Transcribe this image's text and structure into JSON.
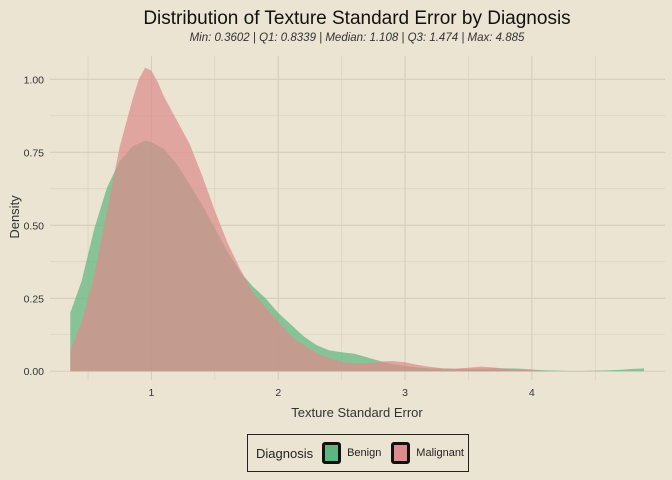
{
  "chart_data": {
    "type": "area",
    "title": "Distribution of Texture Standard Error by Diagnosis",
    "subtitle": "Min: 0.3602 | Q1: 0.8339 | Median: 1.108 | Q3: 1.474 | Max: 4.885",
    "xlabel": "Texture Standard Error",
    "ylabel": "Density",
    "xlim": [
      0.2,
      5.05
    ],
    "ylim": [
      -0.03,
      1.08
    ],
    "x_ticks": [
      1,
      2,
      3,
      4
    ],
    "y_ticks": [
      0.0,
      0.25,
      0.5,
      0.75,
      1.0
    ],
    "y_tick_labels": [
      "0.00",
      "0.25",
      "0.50",
      "0.75",
      "1.00"
    ],
    "grid": true,
    "legend_placement": "bottom",
    "legend_title": "Diagnosis",
    "series": [
      {
        "name": "Benign",
        "color": "#5fb580",
        "x": [
          0.36,
          0.45,
          0.55,
          0.65,
          0.75,
          0.85,
          0.95,
          1.0,
          1.1,
          1.2,
          1.3,
          1.4,
          1.5,
          1.6,
          1.7,
          1.8,
          1.9,
          2.0,
          2.1,
          2.2,
          2.3,
          2.4,
          2.5,
          2.6,
          2.7,
          2.8,
          2.9,
          3.0,
          3.1,
          3.2,
          3.3,
          3.4,
          3.5,
          3.6,
          3.7,
          3.8,
          3.9,
          4.0,
          4.1,
          4.2,
          4.3,
          4.4,
          4.5,
          4.6,
          4.7,
          4.8,
          4.885
        ],
        "values": [
          0.2,
          0.31,
          0.49,
          0.63,
          0.72,
          0.77,
          0.79,
          0.785,
          0.76,
          0.71,
          0.64,
          0.57,
          0.49,
          0.41,
          0.34,
          0.29,
          0.25,
          0.2,
          0.16,
          0.12,
          0.09,
          0.072,
          0.065,
          0.06,
          0.048,
          0.035,
          0.025,
          0.018,
          0.013,
          0.01,
          0.009,
          0.008,
          0.008,
          0.008,
          0.01,
          0.01,
          0.009,
          0.006,
          0.003,
          0.002,
          0.001,
          0.001,
          0.002,
          0.003,
          0.005,
          0.008,
          0.01
        ]
      },
      {
        "name": "Malignant",
        "color": "#dc8c8c",
        "x": [
          0.36,
          0.45,
          0.55,
          0.65,
          0.75,
          0.85,
          0.9,
          0.95,
          1.0,
          1.05,
          1.1,
          1.2,
          1.3,
          1.4,
          1.5,
          1.6,
          1.7,
          1.8,
          1.9,
          2.0,
          2.1,
          2.2,
          2.3,
          2.4,
          2.5,
          2.6,
          2.7,
          2.8,
          2.9,
          3.0,
          3.1,
          3.2,
          3.3,
          3.4,
          3.5,
          3.6,
          3.7,
          3.8,
          3.9,
          4.0,
          4.1,
          4.2
        ],
        "values": [
          0.07,
          0.17,
          0.33,
          0.55,
          0.77,
          0.93,
          1.0,
          1.04,
          1.03,
          0.99,
          0.94,
          0.86,
          0.78,
          0.67,
          0.55,
          0.44,
          0.35,
          0.27,
          0.22,
          0.17,
          0.12,
          0.09,
          0.063,
          0.045,
          0.032,
          0.026,
          0.028,
          0.033,
          0.035,
          0.031,
          0.022,
          0.015,
          0.01,
          0.009,
          0.012,
          0.016,
          0.013,
          0.008,
          0.005,
          0.003,
          0.001,
          0.0
        ]
      }
    ]
  }
}
